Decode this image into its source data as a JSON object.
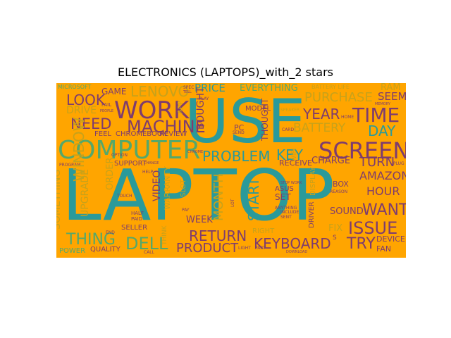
{
  "figure": {
    "title": "ELECTRONICS (LAPTOPS)_with_2 stars",
    "background": "#ffa500",
    "palette": {
      "teal": "#2a9a9a",
      "purple": "#7e3c6e",
      "gold": "#c7a21a",
      "green": "#55a86a"
    }
  },
  "words": [
    {
      "id": "laptop",
      "text": "LAPTOP",
      "color": "teal"
    },
    {
      "id": "use",
      "text": "USE",
      "color": "teal"
    },
    {
      "id": "computer",
      "text": "COMPUTER",
      "color": "green"
    },
    {
      "id": "work",
      "text": "WORK",
      "color": "purple"
    },
    {
      "id": "machine",
      "text": "MACHINE",
      "color": "purple"
    },
    {
      "id": "screen",
      "text": "SCREEN",
      "color": "purple"
    },
    {
      "id": "time",
      "text": "TIME",
      "color": "purple"
    },
    {
      "id": "need",
      "text": "NEED",
      "color": "purple"
    },
    {
      "id": "look",
      "text": "LOOK",
      "color": "purple"
    },
    {
      "id": "lenovo",
      "text": "LENOVO",
      "color": "gold"
    },
    {
      "id": "problem",
      "text": "PROBLEM",
      "color": "teal"
    },
    {
      "id": "key",
      "text": "KEY",
      "color": "teal"
    },
    {
      "id": "year",
      "text": "YEAR",
      "color": "purple"
    },
    {
      "id": "day",
      "text": "DAY",
      "color": "teal"
    },
    {
      "id": "battery",
      "text": "BATTERY",
      "color": "gold"
    },
    {
      "id": "purchase",
      "text": "PURCHASE",
      "color": "gold"
    },
    {
      "id": "seem",
      "text": "SEEM",
      "color": "purple"
    },
    {
      "id": "ram",
      "text": "RAM",
      "color": "gold"
    },
    {
      "id": "price",
      "text": "PRICE",
      "color": "teal"
    },
    {
      "id": "everything",
      "text": "EVERYTHING",
      "color": "green"
    },
    {
      "id": "game",
      "text": "GAME",
      "color": "purple"
    },
    {
      "id": "drive",
      "text": "DRIVE",
      "color": "gold"
    },
    {
      "id": "thing",
      "text": "THING",
      "color": "green"
    },
    {
      "id": "dell",
      "text": "DELL",
      "color": "green"
    },
    {
      "id": "return",
      "text": "RETURN",
      "color": "purple"
    },
    {
      "id": "product",
      "text": "PRODUCT",
      "color": "purple"
    },
    {
      "id": "keyboard",
      "text": "KEYBOARD",
      "color": "purple"
    },
    {
      "id": "try",
      "text": "TRY",
      "color": "purple"
    },
    {
      "id": "issue",
      "text": "ISSUE",
      "color": "purple"
    },
    {
      "id": "want",
      "text": "WANT",
      "color": "purple"
    },
    {
      "id": "turn",
      "text": "TURN",
      "color": "purple"
    },
    {
      "id": "amazon",
      "text": "AMAZON",
      "color": "purple"
    },
    {
      "id": "hour",
      "text": "HOUR",
      "color": "purple"
    },
    {
      "id": "charge",
      "text": "CHARGE",
      "color": "purple"
    },
    {
      "id": "receive",
      "text": "RECEIVE",
      "color": "purple"
    },
    {
      "id": "sound",
      "text": "SOUND",
      "color": "purple"
    },
    {
      "id": "fix",
      "text": "FIX",
      "color": "gold"
    },
    {
      "id": "window",
      "text": "WINDOW",
      "color": "gold"
    },
    {
      "id": "something",
      "text": "SOMETHING",
      "color": "gold"
    },
    {
      "id": "upgrade",
      "text": "UPGRADE",
      "color": "gold"
    },
    {
      "id": "order",
      "text": "ORDER",
      "color": "gold"
    },
    {
      "id": "bought",
      "text": "BOUGHT",
      "color": "purple"
    },
    {
      "id": "thought",
      "text": "THOUGHT",
      "color": "purple"
    },
    {
      "id": "start",
      "text": "START",
      "color": "teal"
    },
    {
      "id": "month",
      "text": "MONTH",
      "color": "gold"
    },
    {
      "id": "week",
      "text": "WEEK",
      "color": "purple"
    },
    {
      "id": "video",
      "text": "VIDEO",
      "color": "purple"
    },
    {
      "id": "warranty",
      "text": "WARRANTY",
      "color": "gold"
    },
    {
      "id": "feel",
      "text": "FEEL",
      "color": "purple"
    },
    {
      "id": "chromebook",
      "text": "CHROMEBOOK",
      "color": "purple"
    },
    {
      "id": "review",
      "text": "REVIEW",
      "color": "purple"
    },
    {
      "id": "support",
      "text": "SUPPORT",
      "color": "purple"
    },
    {
      "id": "box",
      "text": "BOX",
      "color": "purple"
    },
    {
      "id": "set",
      "text": "SET",
      "color": "purple"
    },
    {
      "id": "asus",
      "text": "ASUS",
      "color": "purple"
    },
    {
      "id": "driver",
      "text": "DRIVER",
      "color": "purple"
    },
    {
      "id": "display",
      "text": "DISPLAY",
      "color": "gold"
    },
    {
      "id": "device",
      "text": "DEVICE",
      "color": "purple"
    },
    {
      "id": "fan",
      "text": "FAN",
      "color": "purple"
    },
    {
      "id": "quality",
      "text": "QUALITY",
      "color": "purple"
    },
    {
      "id": "seller",
      "text": "SELLER",
      "color": "purple"
    },
    {
      "id": "power",
      "text": "POWER",
      "color": "green"
    },
    {
      "id": "slot",
      "text": "SLOT",
      "color": "gold"
    },
    {
      "id": "right",
      "text": "RIGHT",
      "color": "gold"
    },
    {
      "id": "battery_life",
      "text": "BATTERY LIFE",
      "color": "gold"
    },
    {
      "id": "model",
      "text": "MODEL",
      "color": "purple"
    },
    {
      "id": "pc",
      "text": "PC",
      "color": "purple"
    },
    {
      "id": "wifi",
      "text": "WIFI",
      "color": "gold"
    },
    {
      "id": "speaker",
      "text": "SPEAKER",
      "color": "gold"
    },
    {
      "id": "app",
      "text": "APP",
      "color": "gold"
    },
    {
      "id": "microsoft",
      "text": "MICROSOFT",
      "color": "green"
    },
    {
      "id": "program",
      "text": "PROGRAM",
      "color": "purple"
    },
    {
      "id": "think",
      "text": "THINK",
      "color": "gold"
    },
    {
      "id": "end",
      "text": "END",
      "color": "purple"
    },
    {
      "id": "call",
      "text": "CALL",
      "color": "purple"
    },
    {
      "id": "card",
      "text": "CARD",
      "color": "purple"
    },
    {
      "id": "plug",
      "text": "PLUG",
      "color": "purple"
    },
    {
      "id": "memory",
      "text": "MEMORY",
      "color": "purple"
    },
    {
      "id": "help",
      "text": "HELP",
      "color": "purple"
    },
    {
      "id": "option",
      "text": "OPTION",
      "color": "purple"
    },
    {
      "id": "half",
      "text": "HALF",
      "color": "purple"
    },
    {
      "id": "paid",
      "text": "PAID",
      "color": "purple"
    },
    {
      "id": "sent",
      "text": "SENT",
      "color": "purple"
    },
    {
      "id": "anything",
      "text": "ANYTHING",
      "color": "purple"
    },
    {
      "id": "reason",
      "text": "REASON",
      "color": "purple"
    },
    {
      "id": "stop_work",
      "text": "STOP WORK",
      "color": "purple"
    },
    {
      "id": "download",
      "text": "DOWNLOAD",
      "color": "purple"
    },
    {
      "id": "include",
      "text": "INCLUDE",
      "color": "purple"
    },
    {
      "id": "pay",
      "text": "PAY",
      "color": "purple"
    },
    {
      "id": "light",
      "text": "LIGHT",
      "color": "purple"
    },
    {
      "id": "change",
      "text": "CHANGE",
      "color": "purple"
    },
    {
      "id": "home",
      "text": "HOME",
      "color": "purple"
    },
    {
      "id": "part",
      "text": "PART",
      "color": "purple"
    },
    {
      "id": "play",
      "text": "PLAY",
      "color": "purple"
    },
    {
      "id": "lot",
      "text": "LOT",
      "color": "purple"
    },
    {
      "id": "fail",
      "text": "FAIL",
      "color": "purple"
    },
    {
      "id": "people",
      "text": "PEOPLE",
      "color": "purple"
    },
    {
      "id": "touch",
      "text": "TOUCH",
      "color": "purple"
    },
    {
      "id": "send",
      "text": "SEND",
      "color": "purple"
    },
    {
      "id": "spec",
      "text": "SPEC",
      "color": "purple"
    },
    {
      "id": "tell",
      "text": "TELL",
      "color": "purple"
    },
    {
      "id": "chrome",
      "text": "CHROME",
      "color": "purple"
    },
    {
      "id": "s",
      "text": "S",
      "color": "purple"
    }
  ]
}
